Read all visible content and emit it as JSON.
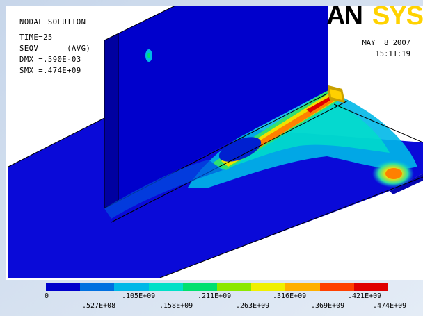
{
  "header": {
    "title": "NODAL SOLUTION",
    "time": "TIME=25",
    "seqv": "SEQV      (AVG)",
    "dmx": "DMX =.590E-03",
    "smx": "SMX =.474E+09"
  },
  "logo": {
    "an": "AN",
    "sys": "SYS",
    "an_color": "#000000",
    "sys_color": "#ffd200"
  },
  "date": {
    "date": "MAY  8 2007",
    "time": "15:11:19"
  },
  "legend": {
    "colors": [
      "#0000cc",
      "#0070e0",
      "#00b8e8",
      "#00e0c8",
      "#00e070",
      "#8ce800",
      "#f0f000",
      "#ffb000",
      "#ff4000",
      "#e00000"
    ],
    "top_labels": [
      "0",
      ".105E+09",
      ".211E+09",
      ".316E+09",
      ".421E+09"
    ],
    "bottom_labels": [
      ".527E+08",
      ".158E+09",
      ".263E+09",
      ".369E+09",
      ".474E+09"
    ]
  }
}
